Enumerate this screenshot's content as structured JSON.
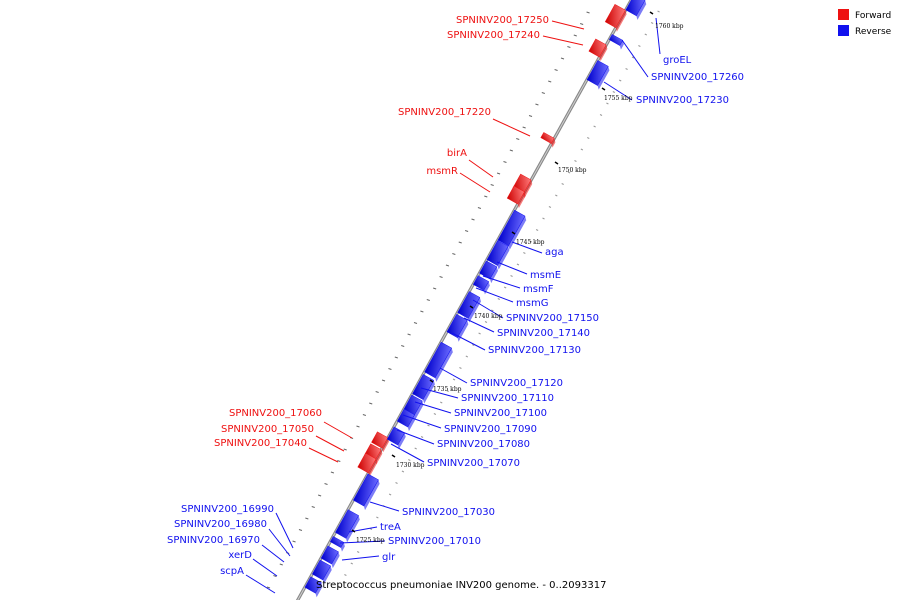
{
  "colors": {
    "forward": "#ee1111",
    "reverse": "#1111ee",
    "backbone": "#7a7a7a"
  },
  "legend": [
    {
      "label": "Forward",
      "color": "#ee1111"
    },
    {
      "label": "Reverse",
      "color": "#1111ee"
    }
  ],
  "footer": "Streptococcus pneumoniae INV200 genome. - 0..2093317",
  "kbp_marks": [
    "1760 kbp",
    "1755 kbp",
    "1750 kbp",
    "1745 kbp",
    "1740 kbp",
    "1735 kbp",
    "1730 kbp",
    "1725 kbp"
  ],
  "genes_forward": [
    "SPNINV200_17250",
    "SPNINV200_17240",
    "SPNINV200_17220",
    "birA",
    "msmR",
    "SPNINV200_17060",
    "SPNINV200_17050",
    "SPNINV200_17040"
  ],
  "genes_reverse": [
    "groEL",
    "SPNINV200_17260",
    "SPNINV200_17230",
    "aga",
    "msmE",
    "msmF",
    "msmG",
    "SPNINV200_17150",
    "SPNINV200_17140",
    "SPNINV200_17130",
    "SPNINV200_17120",
    "SPNINV200_17110",
    "SPNINV200_17100",
    "SPNINV200_17090",
    "SPNINV200_17080",
    "SPNINV200_17070",
    "SPNINV200_17030",
    "treA",
    "SPNINV200_17010",
    "glr"
  ],
  "genes_reverse_left": [
    "SPNINV200_16990",
    "SPNINV200_16980",
    "SPNINV200_16970",
    "xerD",
    "scpA"
  ]
}
